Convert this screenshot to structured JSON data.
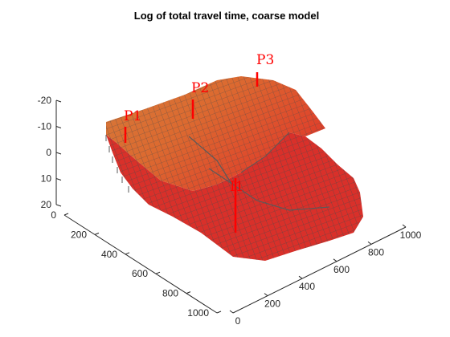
{
  "chart_data": {
    "type": "surface3d",
    "title": "Log of total travel time, coarse model",
    "x_ticks": [
      "0",
      "200",
      "400",
      "600",
      "800",
      "1000"
    ],
    "y_ticks": [
      "0",
      "200",
      "400",
      "600",
      "800",
      "1000"
    ],
    "z_ticks": [
      "-20",
      "-10",
      "0",
      "10",
      "20"
    ],
    "xlim": [
      0,
      1000
    ],
    "ylim": [
      0,
      1000
    ],
    "zlim": [
      -20,
      20
    ],
    "z_direction": "reversed",
    "grid": false,
    "colormap": "red-to-orange (higher log travel time shown orange)",
    "colors": {
      "base": "#dc2e2a",
      "high": "#d88a33",
      "mid": "#c9563a",
      "grid_line": "#5a5a5a",
      "well": "#ff0000"
    },
    "wells": [
      {
        "name": "P1"
      },
      {
        "name": "P2"
      },
      {
        "name": "P3"
      },
      {
        "name": "I1"
      }
    ]
  }
}
